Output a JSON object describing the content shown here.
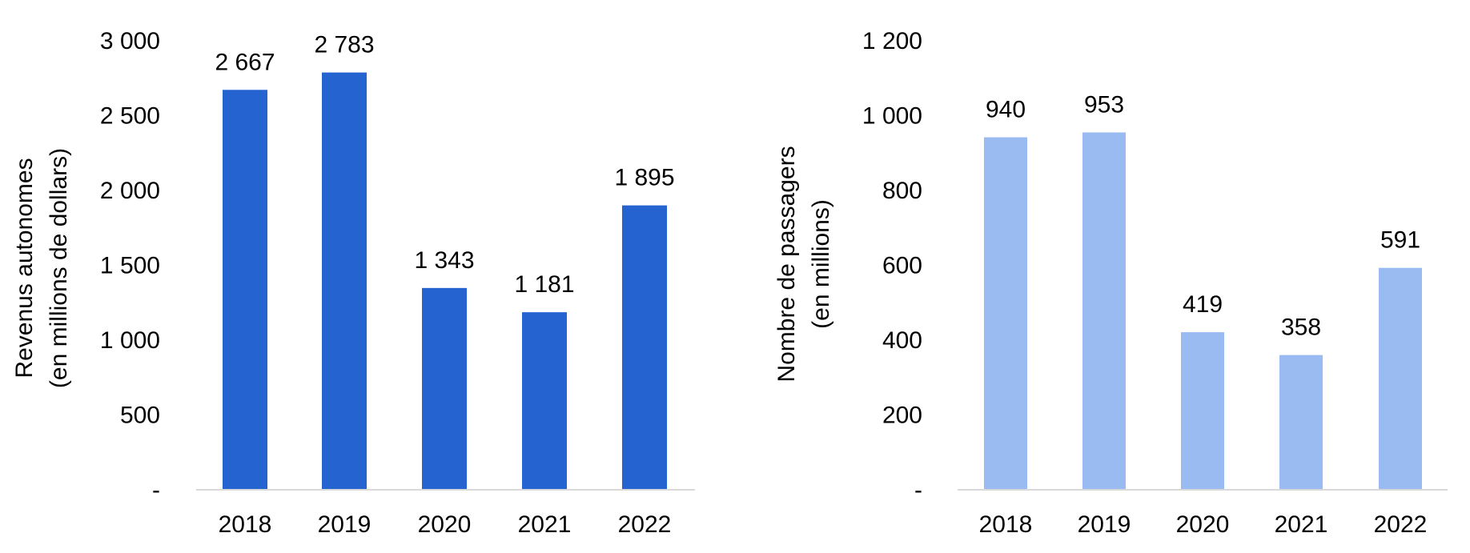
{
  "chart_data": [
    {
      "type": "bar",
      "categories": [
        "2018",
        "2019",
        "2020",
        "2021",
        "2022"
      ],
      "values": [
        2667,
        2783,
        1343,
        1181,
        1895
      ],
      "value_labels": [
        "2 667",
        "2 783",
        "1 343",
        "1 181",
        "1 895"
      ],
      "ylabel_lines": [
        "Revenus autonomes",
        "(en millions de dollars)"
      ],
      "ylim": [
        0,
        3000
      ],
      "yticks": [
        0,
        500,
        1000,
        1500,
        2000,
        2500,
        3000
      ],
      "ytick_labels": [
        "-",
        "500",
        "1 000",
        "1 500",
        "2 000",
        "2 500",
        "3 000"
      ],
      "grid": false,
      "bar_color": "#2563d1"
    },
    {
      "type": "bar",
      "categories": [
        "2018",
        "2019",
        "2020",
        "2021",
        "2022"
      ],
      "values": [
        940,
        953,
        419,
        358,
        591
      ],
      "value_labels": [
        "940",
        "953",
        "419",
        "358",
        "591"
      ],
      "ylabel_lines": [
        "Nombre de passagers",
        "(en millions)"
      ],
      "ylim": [
        0,
        1200
      ],
      "yticks": [
        0,
        200,
        400,
        600,
        800,
        1000,
        1200
      ],
      "ytick_labels": [
        "-",
        "200",
        "400",
        "600",
        "800",
        "1 000",
        "1 200"
      ],
      "grid": false,
      "bar_color": "#99bbf2"
    }
  ]
}
